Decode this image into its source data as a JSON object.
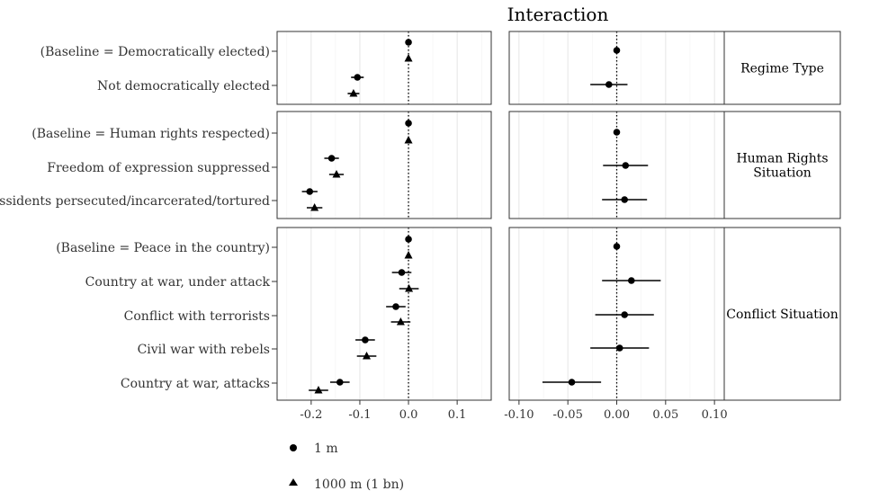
{
  "chart_data": {
    "type": "scatter",
    "subtype": "coefficient-plot",
    "title": "Interaction",
    "series": [
      {
        "name": "1 m",
        "marker": "circle"
      },
      {
        "name": "1000 m (1 bn)",
        "marker": "triangle"
      }
    ],
    "groups": [
      {
        "name": "Regime Type",
        "name_lines": [
          "Regime Type"
        ],
        "rows": [
          {
            "label": "(Baseline = Democratically elected)",
            "left": {
              "circle": [
                0.0,
                0.0,
                0.0
              ],
              "triangle": [
                0.0,
                0.0,
                0.0
              ]
            },
            "right": [
              0.0,
              0.0,
              0.0
            ]
          },
          {
            "label": "Not democratically elected",
            "left": {
              "circle": [
                -0.105,
                -0.118,
                -0.092
              ],
              "triangle": [
                -0.113,
                -0.125,
                -0.101
              ]
            },
            "right": [
              -0.008,
              -0.027,
              0.011
            ]
          }
        ]
      },
      {
        "name": "Human Rights Situation",
        "name_lines": [
          "Human Rights",
          "Situation"
        ],
        "rows": [
          {
            "label": "(Baseline = Human rights respected)",
            "left": {
              "circle": [
                0.0,
                0.0,
                0.0
              ],
              "triangle": [
                0.0,
                0.0,
                0.0
              ]
            },
            "right": [
              0.0,
              0.0,
              0.0
            ]
          },
          {
            "label": "Freedom of expression suppressed",
            "left": {
              "circle": [
                -0.158,
                -0.173,
                -0.143
              ],
              "triangle": [
                -0.148,
                -0.163,
                -0.133
              ]
            },
            "right": [
              0.009,
              -0.014,
              0.032
            ]
          },
          {
            "label": "Dissidents persecuted/incarcerated/tortured",
            "left": {
              "circle": [
                -0.203,
                -0.219,
                -0.187
              ],
              "triangle": [
                -0.193,
                -0.209,
                -0.177
              ]
            },
            "right": [
              0.008,
              -0.015,
              0.031
            ]
          }
        ]
      },
      {
        "name": "Conflict Situation",
        "name_lines": [
          "Conflict Situation"
        ],
        "rows": [
          {
            "label": "(Baseline = Peace in the country)",
            "left": {
              "circle": [
                0.0,
                0.0,
                0.0
              ],
              "triangle": [
                0.0,
                0.0,
                0.0
              ]
            },
            "right": [
              0.0,
              0.0,
              0.0
            ]
          },
          {
            "label": "Country at war, under attack",
            "left": {
              "circle": [
                -0.014,
                -0.034,
                0.006
              ],
              "triangle": [
                0.001,
                -0.019,
                0.021
              ]
            },
            "right": [
              0.015,
              -0.015,
              0.045
            ]
          },
          {
            "label": "Conflict with terrorists",
            "left": {
              "circle": [
                -0.026,
                -0.046,
                -0.006
              ],
              "triangle": [
                -0.016,
                -0.036,
                0.004
              ]
            },
            "right": [
              0.008,
              -0.022,
              0.038
            ]
          },
          {
            "label": "Civil war with rebels",
            "left": {
              "circle": [
                -0.089,
                -0.109,
                -0.069
              ],
              "triangle": [
                -0.086,
                -0.106,
                -0.066
              ]
            },
            "right": [
              0.003,
              -0.027,
              0.033
            ]
          },
          {
            "label": "Country at war, attacks",
            "left": {
              "circle": [
                -0.141,
                -0.161,
                -0.121
              ],
              "triangle": [
                -0.185,
                -0.205,
                -0.165
              ]
            },
            "right": [
              -0.046,
              -0.076,
              -0.016
            ]
          }
        ]
      }
    ],
    "left_axis": {
      "range": [
        -0.27,
        0.17
      ],
      "ticks": [
        -0.2,
        -0.1,
        0.0,
        0.1
      ],
      "tick_labels": [
        "-0.2",
        "-0.1",
        "0.0",
        "0.1"
      ]
    },
    "right_axis": {
      "range": [
        -0.11,
        0.11
      ],
      "ticks": [
        -0.1,
        -0.05,
        0.0,
        0.05,
        0.1
      ],
      "tick_labels": [
        "-0.10",
        "-0.05",
        "0.00",
        "0.05",
        "0.10"
      ]
    },
    "reference_line": 0,
    "grid": true,
    "legend_position": "bottom-left",
    "colors": {
      "points": "#000000",
      "panel_border": "#333333",
      "grid": "#e5e5e5",
      "text": "#333333"
    }
  }
}
